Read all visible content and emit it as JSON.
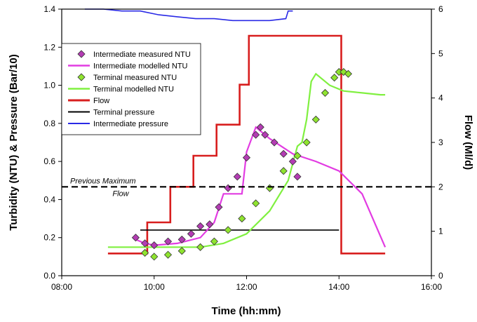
{
  "chart_data": {
    "type": "line",
    "xlabel": "Time (hh:mm)",
    "ylabel": "Turbidity (NTU) & Pressure (Bar/10)",
    "y2label": "Flow (Ml/d)",
    "xlim": [
      8,
      16
    ],
    "ylim": [
      0,
      1.4
    ],
    "y2lim": [
      0,
      6
    ],
    "x_ticks": [
      "08:00",
      "10:00",
      "12:00",
      "14:00",
      "16:00"
    ],
    "y_ticks": [
      "0.0",
      "0.2",
      "0.4",
      "0.6",
      "0.8",
      "1.0",
      "1.2",
      "1.4"
    ],
    "y2_ticks": [
      "0",
      "1",
      "2",
      "3",
      "4",
      "5",
      "6"
    ],
    "grid": false,
    "legend_position": "top-left",
    "colors": {
      "intermediate_measured": "#b43cb4",
      "intermediate_modelled": "#e23ce2",
      "terminal_measured": "#8fe42f",
      "terminal_modelled": "#80f040",
      "flow": "#d81e1e",
      "terminal_pressure": "#000000",
      "intermediate_pressure": "#2a2ae6",
      "previous_max": "#000000"
    },
    "series": [
      {
        "name": "Intermediate measured NTU",
        "axis": "left",
        "style": "diamond",
        "x": [
          9.6,
          9.8,
          10.0,
          10.3,
          10.6,
          10.8,
          11.0,
          11.2,
          11.4,
          11.6,
          11.8,
          12.0,
          12.2,
          12.3,
          12.4,
          12.6,
          12.8,
          13.0,
          13.1
        ],
        "y": [
          0.2,
          0.17,
          0.16,
          0.18,
          0.19,
          0.22,
          0.26,
          0.27,
          0.36,
          0.46,
          0.52,
          0.62,
          0.74,
          0.78,
          0.74,
          0.7,
          0.64,
          0.6,
          0.52
        ]
      },
      {
        "name": "Intermediate modelled NTU",
        "axis": "left",
        "style": "line",
        "x": [
          9.6,
          9.8,
          10.0,
          10.5,
          11.0,
          11.3,
          11.5,
          11.8,
          11.9,
          12.0,
          12.2,
          12.5,
          13.0,
          13.5,
          14.0,
          14.5,
          15.0
        ],
        "y": [
          0.19,
          0.17,
          0.16,
          0.17,
          0.2,
          0.28,
          0.43,
          0.43,
          0.43,
          0.65,
          0.78,
          0.72,
          0.64,
          0.6,
          0.55,
          0.43,
          0.15
        ]
      },
      {
        "name": "Terminal measured NTU",
        "axis": "left",
        "style": "diamond",
        "x": [
          9.8,
          10.0,
          10.3,
          10.6,
          11.0,
          11.3,
          11.6,
          11.9,
          12.2,
          12.5,
          12.8,
          13.1,
          13.3,
          13.5,
          13.7,
          13.9,
          14.0,
          14.1,
          14.2
        ],
        "y": [
          0.12,
          0.1,
          0.11,
          0.13,
          0.15,
          0.18,
          0.24,
          0.3,
          0.38,
          0.46,
          0.55,
          0.63,
          0.7,
          0.82,
          0.96,
          1.04,
          1.07,
          1.07,
          1.06
        ]
      },
      {
        "name": "Terminal modelled NTU",
        "axis": "left",
        "style": "line",
        "x": [
          9.0,
          9.7,
          10.0,
          10.5,
          11.0,
          11.5,
          12.0,
          12.5,
          12.9,
          13.1,
          13.2,
          13.3,
          13.4,
          13.5,
          13.8,
          14.1,
          14.5,
          14.9,
          15.0
        ],
        "y": [
          0.15,
          0.15,
          0.15,
          0.15,
          0.15,
          0.17,
          0.22,
          0.34,
          0.5,
          0.68,
          0.7,
          0.82,
          1.02,
          1.06,
          1.0,
          0.97,
          0.96,
          0.95,
          0.95
        ]
      },
      {
        "name": "Flow",
        "axis": "right",
        "style": "step",
        "x": [
          9.0,
          9.85,
          9.85,
          10.35,
          10.35,
          10.85,
          10.85,
          11.35,
          11.35,
          11.85,
          11.85,
          12.05,
          12.05,
          14.05,
          14.05,
          15.0
        ],
        "y": [
          0.5,
          0.5,
          1.2,
          1.2,
          2.0,
          2.0,
          2.7,
          2.7,
          3.4,
          3.4,
          4.3,
          4.3,
          5.4,
          5.4,
          0.5,
          0.5
        ]
      },
      {
        "name": "Terminal pressure",
        "axis": "left",
        "style": "line",
        "x": [
          9.7,
          10.5,
          11.5,
          12.5,
          13.5,
          14.0
        ],
        "y": [
          0.24,
          0.24,
          0.24,
          0.24,
          0.24,
          0.24
        ]
      },
      {
        "name": "Intermediate pressure",
        "axis": "left",
        "style": "line",
        "x": [
          8.5,
          8.9,
          9.3,
          9.7,
          10.1,
          10.5,
          10.9,
          11.3,
          11.7,
          12.1,
          12.5,
          12.85,
          12.9,
          13.0
        ],
        "y": [
          1.4,
          1.4,
          1.39,
          1.39,
          1.37,
          1.36,
          1.35,
          1.35,
          1.34,
          1.34,
          1.34,
          1.35,
          1.39,
          1.39
        ]
      }
    ],
    "reference_lines": [
      {
        "label": "Previous Maximum\nFlow",
        "axis": "right",
        "y": 2.0,
        "style": "dashed"
      }
    ],
    "annotations": [
      "Previous Maximum",
      "Flow"
    ]
  }
}
